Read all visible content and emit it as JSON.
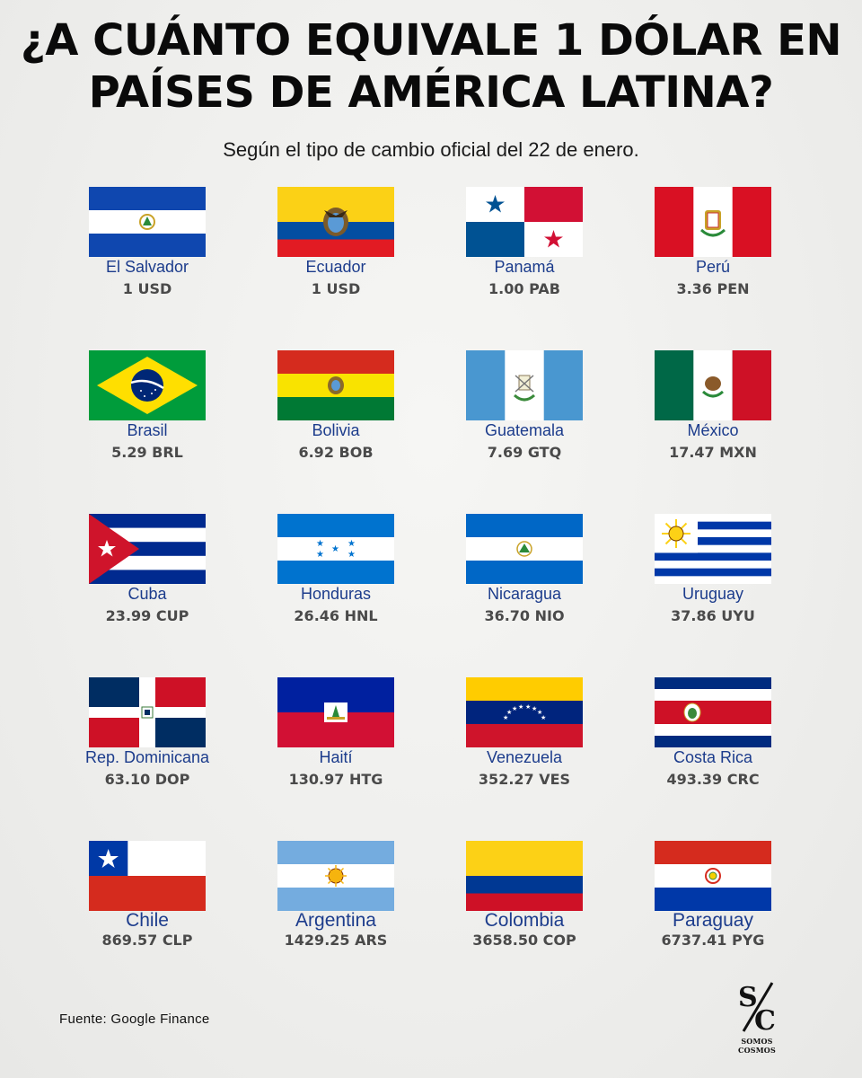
{
  "header": {
    "title_line1": "¿A CUÁNTO EQUIVALE 1 DÓLAR EN",
    "title_line2": "PAÍSES DE AMÉRICA LATINA?",
    "subtitle": "Según el tipo de cambio oficial del 22 de enero."
  },
  "countries": [
    {
      "name": "El Salvador",
      "rate": "1 USD",
      "flag": "el-salvador"
    },
    {
      "name": "Ecuador",
      "rate": "1 USD",
      "flag": "ecuador"
    },
    {
      "name": "Panamá",
      "rate": "1.00 PAB",
      "flag": "panama"
    },
    {
      "name": "Perú",
      "rate": "3.36 PEN",
      "flag": "peru"
    },
    {
      "name": "Brasil",
      "rate": "5.29 BRL",
      "flag": "brazil"
    },
    {
      "name": "Bolivia",
      "rate": "6.92 BOB",
      "flag": "bolivia"
    },
    {
      "name": "Guatemala",
      "rate": "7.69 GTQ",
      "flag": "guatemala"
    },
    {
      "name": "México",
      "rate": "17.47 MXN",
      "flag": "mexico"
    },
    {
      "name": "Cuba",
      "rate": "23.99 CUP",
      "flag": "cuba"
    },
    {
      "name": "Honduras",
      "rate": "26.46 HNL",
      "flag": "honduras"
    },
    {
      "name": "Nicaragua",
      "rate": "36.70 NIO",
      "flag": "nicaragua"
    },
    {
      "name": "Uruguay",
      "rate": "37.86 UYU",
      "flag": "uruguay"
    },
    {
      "name": "Rep. Dominicana",
      "rate": "63.10 DOP",
      "flag": "dominican-republic"
    },
    {
      "name": "Haití",
      "rate": "130.97 HTG",
      "flag": "haiti"
    },
    {
      "name": "Venezuela",
      "rate": "352.27 VES",
      "flag": "venezuela"
    },
    {
      "name": "Costa Rica",
      "rate": "493.39 CRC",
      "flag": "costa-rica"
    },
    {
      "name": "Chile",
      "rate": "869.57 CLP",
      "flag": "chile"
    },
    {
      "name": "Argentina",
      "rate": "1429.25 ARS",
      "flag": "argentina"
    },
    {
      "name": "Colombia",
      "rate": "3658.50 COP",
      "flag": "colombia"
    },
    {
      "name": "Paraguay",
      "rate": "6737.41 PYG",
      "flag": "paraguay"
    }
  ],
  "footer": {
    "source": "Fuente: Google Finance",
    "logo_text": "SOMOS COSMOS",
    "logo_icon": "sc-logo-icon"
  },
  "colors": {
    "country_name": "#1c3c8c",
    "rate_text": "#4a4a4a",
    "background": "#f0f0ee"
  }
}
